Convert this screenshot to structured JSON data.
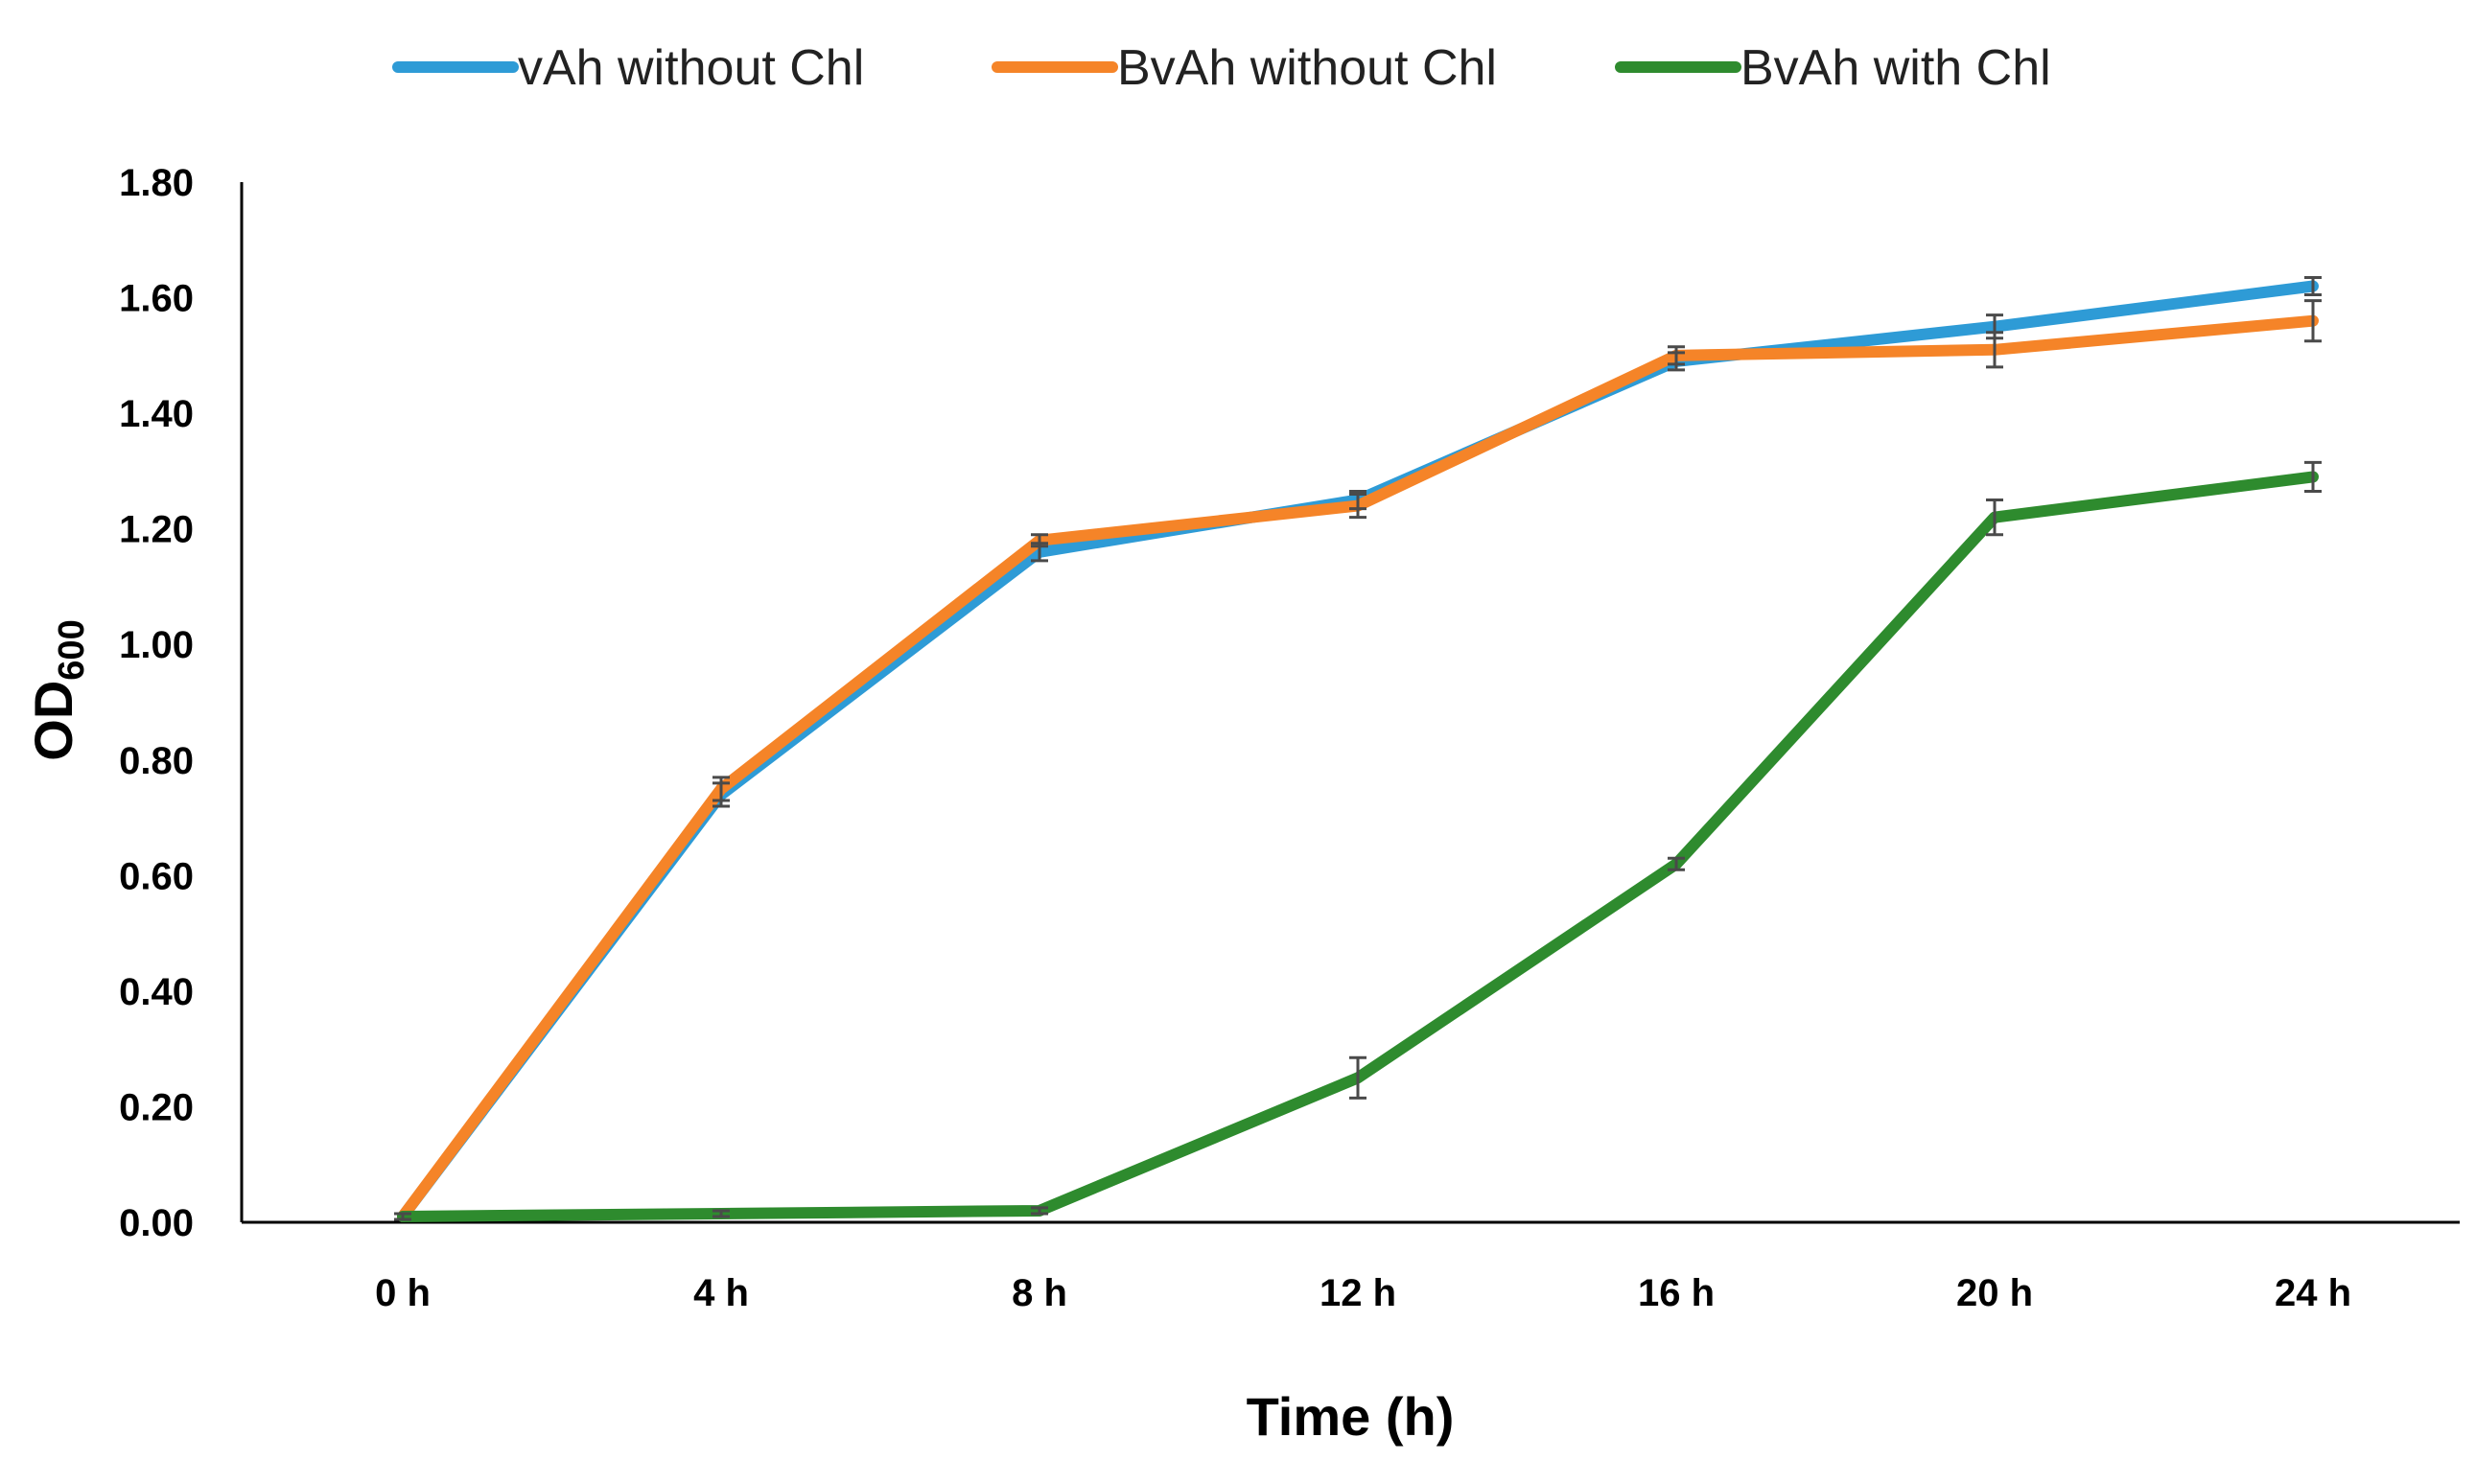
{
  "chart_data": {
    "type": "line",
    "title": "",
    "xlabel": "Time (h)",
    "ylabel": "OD",
    "ylabel_subscript": "600",
    "categories": [
      "0 h",
      "4 h",
      "8 h",
      "12 h",
      "16 h",
      "20 h",
      "24 h"
    ],
    "ylim": [
      0,
      1.8
    ],
    "yticks": [
      "0.00",
      "0.20",
      "0.40",
      "0.60",
      "0.80",
      "1.00",
      "1.20",
      "1.40",
      "1.60",
      "1.80"
    ],
    "grid": false,
    "legend_position": "top",
    "series": [
      {
        "name": "vAh without Chl",
        "color": "#2E9BD6",
        "values": [
          0.01,
          0.74,
          1.16,
          1.25,
          1.49,
          1.55,
          1.62
        ],
        "errors": [
          0.005,
          0.02,
          0.015,
          0.015,
          0.015,
          0.02,
          0.015
        ]
      },
      {
        "name": "BvAh without Chl",
        "color": "#F58428",
        "values": [
          0.01,
          0.75,
          1.18,
          1.24,
          1.5,
          1.51,
          1.56
        ],
        "errors": [
          0.005,
          0.02,
          0.01,
          0.02,
          0.015,
          0.03,
          0.035
        ]
      },
      {
        "name": "BvAh with Chl",
        "color": "#2E8B2E",
        "values": [
          0.01,
          0.015,
          0.02,
          0.25,
          0.62,
          1.22,
          1.29
        ],
        "errors": [
          0.005,
          0.005,
          0.005,
          0.035,
          0.01,
          0.03,
          0.025
        ]
      }
    ]
  }
}
